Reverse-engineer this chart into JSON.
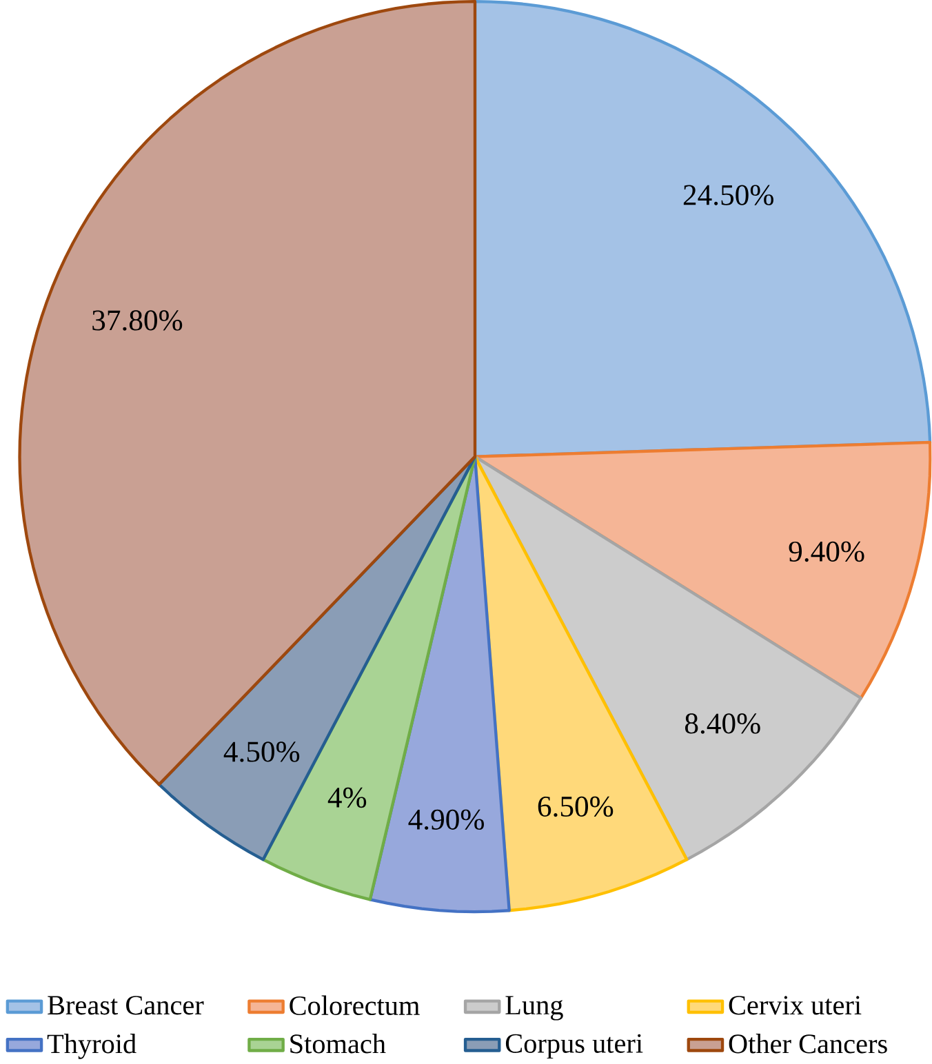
{
  "chart_data": {
    "type": "pie",
    "categories": [
      "Breast Cancer",
      "Colorectum",
      "Lung",
      "Cervix uteri",
      "Thyroid",
      "Stomach",
      "Corpus uteri",
      "Other Cancers"
    ],
    "values": [
      24.5,
      9.4,
      8.4,
      6.5,
      4.9,
      4,
      4.5,
      37.8
    ],
    "value_labels": [
      "24.50%",
      "9.40%",
      "8.40%",
      "6.50%",
      "4.90%",
      "4%",
      "4.50%",
      "37.80%"
    ],
    "colors": [
      "#a4c2e6",
      "#f5b596",
      "#cccccc",
      "#ffd97a",
      "#97a8dc",
      "#a9d394",
      "#8a9db6",
      "#c9a093"
    ],
    "legend": "bottom"
  }
}
